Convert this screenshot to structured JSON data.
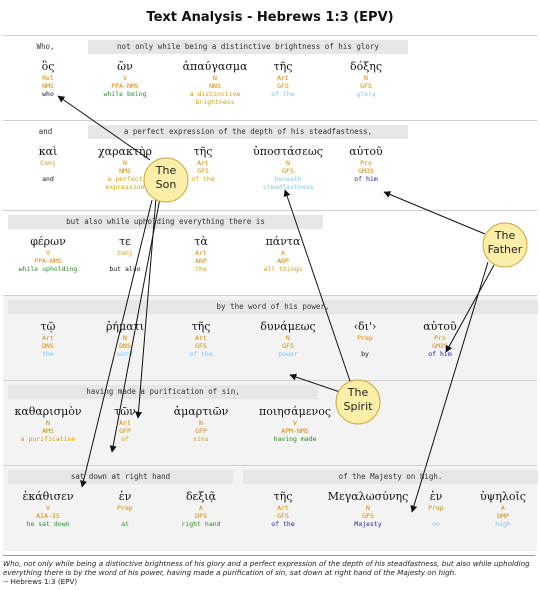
{
  "title": "Text Analysis - Hebrews 1:3 (EPV)",
  "colors": {
    "greek": "#111111",
    "pos": "#d08a00",
    "gloss_green": "#2a8a2a",
    "gloss_blue": "#2020a0",
    "gloss_lightblue": "#7fc6e6",
    "circle_fill": "#fbeea8",
    "circle_stroke": "#c9a93a"
  },
  "rows": [
    {
      "phrases": [
        {
          "text": "Who,"
        },
        {
          "text": "not only while being a distinctive brightness of his glory"
        }
      ],
      "words": [
        {
          "greek": "ὃς",
          "pos": "Rel",
          "parse": "NMS",
          "gloss": "who",
          "tone": "black"
        },
        {
          "greek": "ὢν",
          "pos": "V",
          "parse": "PPA-NMS",
          "gloss": "while being",
          "tone": "green"
        },
        {
          "greek": "ἀπαύγασμα",
          "pos": "N",
          "parse": "NNS",
          "gloss": "a distinctive\nbrightness",
          "tone": "yellow"
        },
        {
          "greek": "τῆς",
          "pos": "Art",
          "parse": "GFS",
          "gloss": "of the",
          "tone": "lightblue"
        },
        {
          "greek": "δόξης",
          "pos": "N",
          "parse": "GFS",
          "gloss": "glory",
          "tone": "lightblue"
        }
      ]
    },
    {
      "phrases": [
        {
          "text": "and"
        },
        {
          "text": "a perfect expression of the depth of his steadfastness,"
        }
      ],
      "words": [
        {
          "greek": "καὶ",
          "pos": "Conj",
          "parse": "",
          "gloss": "and",
          "tone": "black"
        },
        {
          "greek": "χαρακτὴρ",
          "pos": "N",
          "parse": "NMS",
          "gloss": "a perfect\nexpression",
          "tone": "yellow"
        },
        {
          "greek": "τῆς",
          "pos": "Art",
          "parse": "GFS",
          "gloss": "of the",
          "tone": "yellow"
        },
        {
          "greek": "ὑποστάσεως",
          "pos": "N",
          "parse": "GFS",
          "gloss": "beneath\nsteadfastness",
          "tone": "lightblue"
        },
        {
          "greek": "αὐτοῦ",
          "pos": "Pro",
          "parse": "GM3S",
          "gloss": "of him",
          "tone": "blue"
        }
      ]
    },
    {
      "phrases": [
        {
          "text": "but also while upholding everything there is"
        }
      ],
      "words": [
        {
          "greek": "φέρων",
          "pos": "V",
          "parse": "PPA-NMS",
          "gloss": "while upholding",
          "tone": "green"
        },
        {
          "greek": "τε",
          "pos": "Conj",
          "parse": "",
          "gloss": "but also",
          "tone": "black"
        },
        {
          "greek": "τὰ",
          "pos": "Art",
          "parse": "ANP",
          "gloss": "the",
          "tone": "yellow"
        },
        {
          "greek": "πάντα",
          "pos": "A",
          "parse": "ANP",
          "gloss": "all things",
          "tone": "yellow"
        }
      ]
    },
    {
      "phrases": [
        {
          "text": "by the word of his power,"
        }
      ],
      "words": [
        {
          "greek": "τῷ",
          "pos": "Art",
          "parse": "DNS",
          "gloss": "the",
          "tone": "lightblue"
        },
        {
          "greek": "ῥήματι",
          "pos": "N",
          "parse": "DNS",
          "gloss": "word",
          "tone": "lightblue"
        },
        {
          "greek": "τῆς",
          "pos": "Art",
          "parse": "GFS",
          "gloss": "of the",
          "tone": "lightblue"
        },
        {
          "greek": "δυνάμεως",
          "pos": "N",
          "parse": "GFS",
          "gloss": "power",
          "tone": "lightblue"
        },
        {
          "greek": "‹δι'›",
          "pos": "Prep",
          "parse": "",
          "gloss": "by",
          "tone": "black"
        },
        {
          "greek": "αὐτοῦ",
          "pos": "Pro",
          "parse": "GM3S",
          "gloss": "of him",
          "tone": "blue"
        }
      ]
    },
    {
      "phrases": [
        {
          "text": "having made a purification of sin,"
        }
      ],
      "words": [
        {
          "greek": "καθαρισμὸν",
          "pos": "N",
          "parse": "AMS",
          "gloss": "a purification",
          "tone": "yellow"
        },
        {
          "greek": "τῶν",
          "pos": "Art",
          "parse": "GFP",
          "gloss": "of",
          "tone": "yellow"
        },
        {
          "greek": "ἁμαρτιῶν",
          "pos": "N",
          "parse": "GFP",
          "gloss": "sins",
          "tone": "yellow"
        },
        {
          "greek": "ποιησάμενος",
          "pos": "V",
          "parse": "APM-NMS",
          "gloss": "having made",
          "tone": "green"
        }
      ]
    },
    {
      "phrases": [
        {
          "text": "sat down at right hand"
        },
        {
          "text": "of the Majesty on high."
        }
      ],
      "words": [
        {
          "greek": "ἐκάθισεν",
          "pos": "V",
          "parse": "AIA-3S",
          "gloss": "he sat down",
          "tone": "green"
        },
        {
          "greek": "ἐν",
          "pos": "Prep",
          "parse": "",
          "gloss": "at",
          "tone": "green"
        },
        {
          "greek": "δεξιᾷ",
          "pos": "A",
          "parse": "DFS",
          "gloss": "right hand",
          "tone": "green"
        },
        {
          "greek": "τῆς",
          "pos": "Art",
          "parse": "GFS",
          "gloss": "of the",
          "tone": "blue"
        },
        {
          "greek": "Μεγαλωσύνης",
          "pos": "N",
          "parse": "GFS",
          "gloss": "Majesty",
          "tone": "blue"
        },
        {
          "greek": "ἐν",
          "pos": "Prep",
          "parse": "",
          "gloss": "on",
          "tone": "lightblue"
        },
        {
          "greek": "ὑψηλοῖς",
          "pos": "A",
          "parse": "DMP",
          "gloss": "high",
          "tone": "lightblue"
        }
      ]
    }
  ],
  "annotations": [
    {
      "label": "The\nSon"
    },
    {
      "label": "The\nFather"
    },
    {
      "label": "The\nSpirit"
    }
  ],
  "footer": {
    "text": "Who, not only while being a distinctive brightness of his glory and a perfect expression of the depth of his steadfastness, but also while upholding everything there is by the word of his power, having made a purification of sin, sat down at right hand of the Majesty on high.",
    "reference": "-- Hebrews 1:3 (EPV)"
  }
}
